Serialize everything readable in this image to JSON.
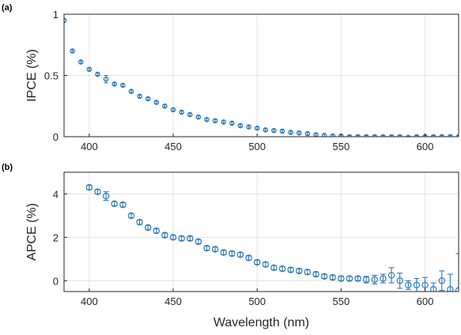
{
  "panels": [
    {
      "label": "(a)",
      "ylabel": "IPCE (%)",
      "xlabel": "",
      "xlim": [
        385,
        620
      ],
      "ylim": [
        0,
        1
      ],
      "xticks": [
        400,
        450,
        500,
        550,
        600
      ],
      "xtick_labels": [
        "400",
        "450",
        "500",
        "550",
        "600"
      ],
      "yticks": [
        0,
        0.5,
        1
      ],
      "ytick_labels": [
        "0",
        "0.5",
        "1"
      ]
    },
    {
      "label": "(b)",
      "ylabel": "APCE (%)",
      "xlabel": "Wavelength (nm)",
      "xlim": [
        385,
        620
      ],
      "ylim": [
        -0.5,
        5
      ],
      "xticks": [
        400,
        450,
        500,
        550,
        600
      ],
      "xtick_labels": [
        "400",
        "450",
        "500",
        "550",
        "600"
      ],
      "yticks": [
        0,
        2,
        4
      ],
      "ytick_labels": [
        "0",
        "2",
        "4"
      ]
    }
  ],
  "colors": {
    "series": "#2f7ab8",
    "grid": "#e3e3e3",
    "axis": "#262626"
  },
  "chart_data": [
    {
      "type": "scatter",
      "title": "",
      "xlabel": "",
      "ylabel": "IPCE (%)",
      "xlim": [
        385,
        620
      ],
      "ylim": [
        0,
        1
      ],
      "grid": true,
      "series": [
        {
          "marker": "circle",
          "error_bars": true,
          "x": [
            385,
            390,
            395,
            400,
            405,
            410,
            415,
            420,
            425,
            430,
            435,
            440,
            445,
            450,
            455,
            460,
            465,
            470,
            475,
            480,
            485,
            490,
            495,
            500,
            505,
            510,
            515,
            520,
            525,
            530,
            535,
            540,
            545,
            550,
            555,
            560,
            565,
            570,
            575,
            580,
            585,
            590,
            595,
            600,
            605,
            610,
            615,
            620
          ],
          "y": [
            0.95,
            0.7,
            0.61,
            0.55,
            0.51,
            0.47,
            0.43,
            0.42,
            0.37,
            0.33,
            0.31,
            0.28,
            0.25,
            0.22,
            0.2,
            0.18,
            0.16,
            0.14,
            0.13,
            0.12,
            0.11,
            0.09,
            0.08,
            0.07,
            0.055,
            0.05,
            0.045,
            0.035,
            0.03,
            0.025,
            0.015,
            0.01,
            0.005,
            0.005,
            0.0,
            0.0,
            0.0,
            0.0,
            0.0,
            0.0,
            0.0,
            -0.005,
            0.0,
            0.0,
            0.0,
            0.0,
            0.0,
            0.0
          ],
          "err": [
            0.01,
            0.01,
            0.01,
            0.01,
            0.01,
            0.03,
            0.01,
            0.01,
            0.01,
            0.01,
            0.01,
            0.01,
            0.01,
            0.01,
            0.01,
            0.01,
            0.01,
            0.01,
            0.01,
            0.01,
            0.01,
            0.01,
            0.01,
            0.01,
            0.01,
            0.01,
            0.01,
            0.01,
            0.01,
            0.01,
            0.01,
            0.01,
            0.01,
            0.01,
            0.01,
            0.01,
            0.01,
            0.01,
            0.01,
            0.01,
            0.01,
            0.01,
            0.01,
            0.01,
            0.01,
            0.01,
            0.01,
            0.01
          ]
        }
      ]
    },
    {
      "type": "scatter",
      "title": "",
      "xlabel": "Wavelength (nm)",
      "ylabel": "APCE (%)",
      "xlim": [
        385,
        620
      ],
      "ylim": [
        -0.5,
        5
      ],
      "grid": true,
      "series": [
        {
          "marker": "circle",
          "error_bars": true,
          "x": [
            400,
            405,
            410,
            415,
            420,
            425,
            430,
            435,
            440,
            445,
            450,
            455,
            460,
            465,
            470,
            475,
            480,
            485,
            490,
            495,
            500,
            505,
            510,
            515,
            520,
            525,
            530,
            535,
            540,
            545,
            550,
            555,
            560,
            565,
            570,
            575,
            580,
            585,
            590,
            595,
            600,
            605,
            610,
            615,
            620
          ],
          "y": [
            4.3,
            4.1,
            3.9,
            3.55,
            3.5,
            3.0,
            2.7,
            2.45,
            2.3,
            2.1,
            2.0,
            1.95,
            1.95,
            1.8,
            1.5,
            1.45,
            1.3,
            1.25,
            1.2,
            1.05,
            0.85,
            0.75,
            0.6,
            0.55,
            0.5,
            0.45,
            0.4,
            0.3,
            0.2,
            0.15,
            0.1,
            0.1,
            0.1,
            0.05,
            0.05,
            0.1,
            0.25,
            0.0,
            -0.2,
            -0.2,
            -0.2,
            -0.4,
            0.0,
            -0.4,
            -0.45
          ],
          "err": [
            0.1,
            0.1,
            0.2,
            0.1,
            0.1,
            0.1,
            0.1,
            0.1,
            0.1,
            0.1,
            0.1,
            0.1,
            0.1,
            0.1,
            0.1,
            0.1,
            0.1,
            0.1,
            0.1,
            0.1,
            0.1,
            0.1,
            0.1,
            0.1,
            0.1,
            0.1,
            0.1,
            0.1,
            0.1,
            0.1,
            0.1,
            0.1,
            0.1,
            0.15,
            0.2,
            0.2,
            0.35,
            0.35,
            0.2,
            0.3,
            0.35,
            0.3,
            0.45,
            0.7,
            1.7
          ]
        }
      ]
    }
  ]
}
